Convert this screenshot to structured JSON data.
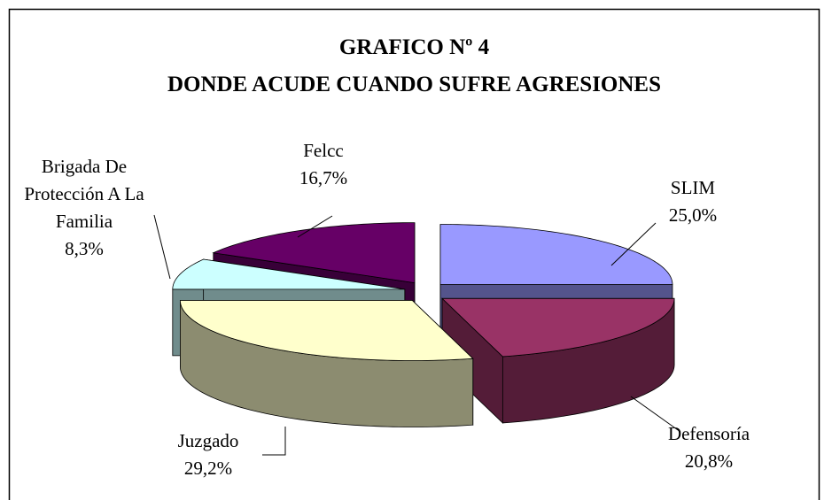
{
  "chart_data": {
    "type": "pie3d",
    "title": "GRAFICO Nº 4",
    "subtitle": "DONDE ACUDE CUANDO SUFRE AGRESIONES",
    "categories": [
      "SLIM",
      "Defensoría",
      "Juzgado",
      "Brigada De Protección A La Familia",
      "Felcc"
    ],
    "values": [
      25.0,
      20.8,
      29.2,
      8.3,
      16.7
    ],
    "value_labels": [
      "25,0%",
      "20,8%",
      "29,2%",
      "8,3%",
      "16,7%"
    ],
    "colors": [
      "#9999ff",
      "#993366",
      "#ffffcc",
      "#ccffff",
      "#660066"
    ]
  }
}
